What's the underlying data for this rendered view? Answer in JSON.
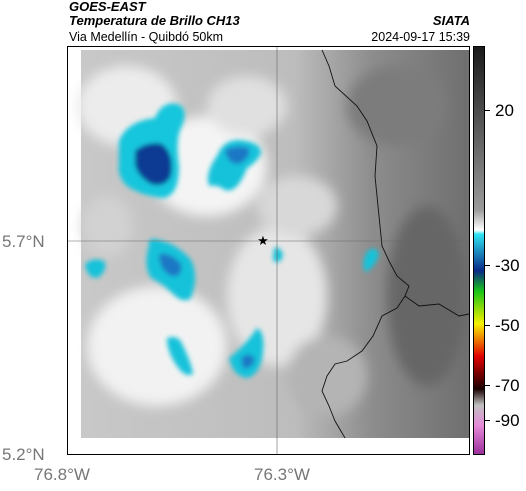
{
  "header": {
    "satellite": "GOES-EAST",
    "product": "Temperatura de Brillo CH13",
    "organization": "SIATA",
    "subtitle": "Via Medellín - Quibdó 50km",
    "datetime": "2024-09-17 15:39"
  },
  "map": {
    "lat_labels": [
      "5.7°N",
      "5.2°N"
    ],
    "lon_labels": [
      "76.8°W",
      "76.3°W"
    ],
    "marker": "star-marker"
  },
  "colorbar": {
    "labels": [
      "20",
      "-30",
      "-50",
      "-70",
      "-90"
    ],
    "stops": [
      "#1a1a1a",
      "#9a9a9a",
      "#ffffff",
      "#2ee4f2",
      "#0a2a88",
      "#18c418",
      "#f7f000",
      "#e20000",
      "#1a0000",
      "#c0c0c0",
      "#e58ad8",
      "#9b2f9b"
    ]
  }
}
